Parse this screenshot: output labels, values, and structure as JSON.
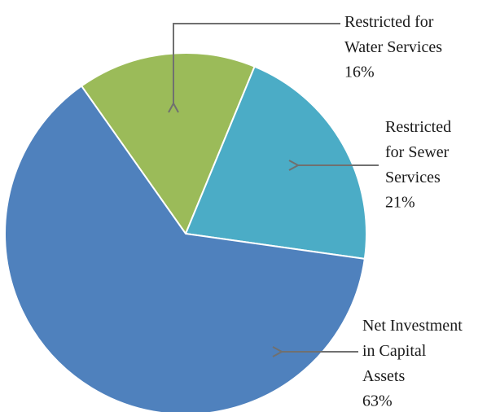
{
  "chart_data": {
    "type": "pie",
    "categories": [
      "Restricted for Water Services",
      "Restricted for Sewer Services",
      "Net Investment in Capital Assets"
    ],
    "values": [
      16,
      21,
      63
    ],
    "value_labels": [
      "16%",
      "21%",
      "63%"
    ],
    "colors": [
      "#9bbb59",
      "#4bacc6",
      "#4f81bd"
    ]
  }
}
